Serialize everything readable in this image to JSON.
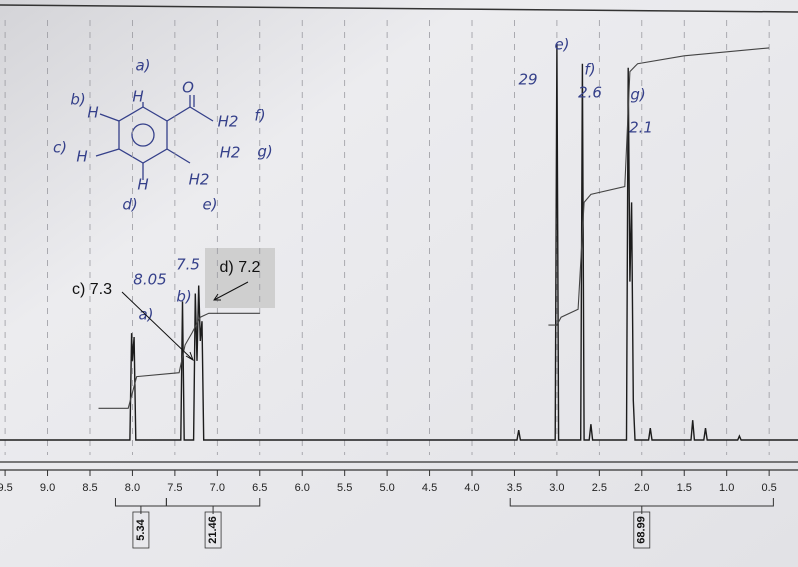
{
  "chart_data": {
    "type": "line",
    "xlim": [
      9.56,
      0.16
    ],
    "ylim": [
      0,
      102
    ],
    "xticks": [
      9.5,
      {
        "value": 9,
        "label": "9.0"
      },
      8.5,
      {
        "value": 8,
        "label": "8.0"
      },
      7.5,
      {
        "value": 7,
        "label": "7.0"
      },
      6.5,
      {
        "value": 6,
        "label": "6.0"
      },
      5.5,
      {
        "value": 5,
        "label": "5.0"
      },
      4.5,
      {
        "value": 4,
        "label": "4.0"
      },
      3.5,
      {
        "value": 3,
        "label": "3.0"
      },
      2.5,
      {
        "value": 2,
        "label": "2.0"
      },
      1.5,
      {
        "value": 1,
        "label": "1.0"
      },
      0.5
    ],
    "grid": true,
    "legend": false,
    "series": [
      {
        "color": "#1c1c1c",
        "x": [
          9.56,
          8.03,
          8.01,
          8.0,
          7.98,
          7.96,
          7.43,
          7.41,
          7.39,
          7.28,
          7.26,
          7.24,
          7.22,
          7.2,
          7.18,
          7.16,
          3.47,
          3.45,
          3.43,
          3.02,
          3.0,
          2.98,
          2.72,
          2.7,
          2.68,
          2.62,
          2.6,
          2.58,
          2.18,
          2.16,
          2.14,
          2.12,
          2.1,
          2.08,
          1.92,
          1.9,
          1.88,
          1.42,
          1.4,
          1.38,
          1.27,
          1.25,
          1.23,
          0.87,
          0.85,
          0.83,
          0.16
        ],
        "values": [
          0,
          0,
          27,
          20,
          26,
          0,
          0,
          35,
          0,
          0,
          37,
          20,
          39,
          25,
          30,
          0,
          0,
          2.5,
          0,
          0,
          100,
          0,
          0,
          95,
          0,
          0,
          4,
          0,
          0,
          94,
          40,
          60,
          10,
          0,
          0,
          3,
          0,
          0,
          5,
          0,
          0,
          3,
          0,
          0,
          1,
          0,
          0
        ]
      },
      {
        "color": "#444444",
        "x": [
          8.4,
          8.05,
          7.95,
          7.45,
          7.38,
          7.3,
          7.2,
          7.1,
          6.5
        ],
        "values": [
          8,
          8,
          16,
          17,
          24,
          27,
          31,
          32,
          32
        ]
      },
      {
        "color": "#444444",
        "x": [
          3.1,
          3.0,
          2.95,
          2.75,
          2.68,
          2.6,
          2.2,
          2.14,
          2.05,
          1.5,
          0.5
        ],
        "values": [
          29,
          29,
          31,
          33,
          60,
          62,
          64,
          93,
          95,
          97,
          99
        ]
      }
    ],
    "integrations": [
      {
        "value": 5.34,
        "range": [
          8.2,
          7.6
        ]
      },
      {
        "value": 21.46,
        "range": [
          7.6,
          6.5
        ]
      },
      {
        "value": 68.99,
        "range": [
          3.55,
          0.45
        ]
      }
    ],
    "structure_labels": [
      "a)",
      "H",
      "O",
      "b)",
      "H",
      "H2",
      "f)",
      "c)",
      "H",
      "H2",
      "g)",
      "H2",
      "H",
      "d)",
      "e)"
    ],
    "peak_labels": [
      "e)",
      "29",
      "f)",
      "2.6",
      "g)",
      "2.1",
      "8.05",
      "a)",
      "7.5",
      "b)"
    ],
    "callouts": [
      "c) 7.3",
      "d) 7.2"
    ]
  }
}
